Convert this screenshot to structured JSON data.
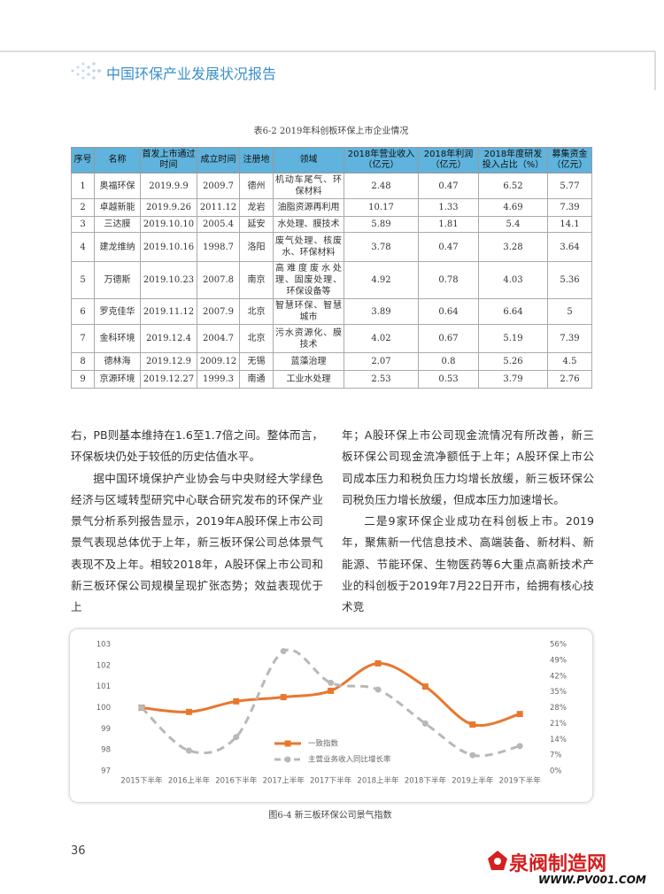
{
  "header": {
    "title": "中国环保产业发展状况报告"
  },
  "table": {
    "caption": "表6-2 2019年科创板环保上市企业情况",
    "columns": [
      "序号",
      "名称",
      "首发上市通过时间",
      "成立时间",
      "注册地",
      "领域",
      "2018年营业收入（亿元）",
      "2018年利润（亿元）",
      "2018年度研发投入占比（%）",
      "募集资金（亿元）"
    ],
    "rows": [
      [
        "1",
        "奥福环保",
        "2019.9.9",
        "2009.7",
        "德州",
        "机动车尾气、环保材料",
        "2.48",
        "0.47",
        "6.52",
        "5.77"
      ],
      [
        "2",
        "卓越新能",
        "2019.9.26",
        "2011.12",
        "龙岩",
        "油脂资源再利用",
        "10.17",
        "1.33",
        "4.69",
        "7.39"
      ],
      [
        "3",
        "三达膜",
        "2019.10.10",
        "2005.4",
        "延安",
        "水处理、膜技术",
        "5.89",
        "1.81",
        "5.4",
        "14.1"
      ],
      [
        "4",
        "建龙维纳",
        "2019.10.16",
        "1998.7",
        "洛阳",
        "废气处理、核废水、环保材料",
        "3.78",
        "0.47",
        "3.28",
        "3.64"
      ],
      [
        "5",
        "万德斯",
        "2019.10.23",
        "2007.8",
        "南京",
        "高难度废水处理、固废处理、环保设备等",
        "4.92",
        "0.78",
        "4.03",
        "5.36"
      ],
      [
        "6",
        "罗克佳华",
        "2019.11.12",
        "2007.9",
        "北京",
        "智慧环保、智慧城市",
        "3.89",
        "0.64",
        "6.64",
        "5"
      ],
      [
        "7",
        "金科环境",
        "2019.12.4",
        "2004.7",
        "北京",
        "污水资源化、膜技术",
        "4.02",
        "0.67",
        "5.19",
        "7.39"
      ],
      [
        "8",
        "德林海",
        "2019.12.9",
        "2009.12",
        "无锡",
        "蓝藻治理",
        "2.07",
        "0.8",
        "5.26",
        "4.5"
      ],
      [
        "9",
        "京源环境",
        "2019.12.27",
        "1999.3",
        "南通",
        "工业水处理",
        "2.53",
        "0.53",
        "3.79",
        "2.76"
      ]
    ]
  },
  "body": {
    "left": [
      "右，PB则基本维持在1.6至1.7倍之间。整体而言，环保板块仍处于较低的历史估值水平。",
      "据中国环境保护产业协会与中央财经大学绿色经济与区域转型研究中心联合研究发布的环保产业景气分析系列报告显示，2019年A股环保上市公司景气表现总体优于上年，新三板环保公司总体景气表现不及上年。相较2018年，A股环保上市公司和新三板环保公司规模呈现扩张态势；效益表现优于上"
    ],
    "right": [
      "年；A股环保上市公司现金流情况有所改善，新三板环保公司现金流净额低于上年；A股环保上市公司成本压力和税负压力均增长放缓，新三板环保公司税负压力增长放缓，但成本压力加速增长。",
      "二是9家环保企业成功在科创板上市。2019年，聚焦新一代信息技术、高端装备、新材料、新能源、节能环保、生物医药等6大重点高新技术产业的科创板于2019年7月22日开市，给拥有核心技术竞"
    ]
  },
  "chart_data": {
    "type": "line",
    "categories": [
      "2015下半年",
      "2016上半年",
      "2016下半年",
      "2017上半年",
      "2017下半年",
      "2018上半年",
      "2018下半年",
      "2019上半年",
      "2019下半年"
    ],
    "series": [
      {
        "name": "一致指数",
        "color": "#e8772e",
        "values": [
          100,
          99.8,
          100.3,
          100.5,
          100.8,
          102.1,
          101.0,
          99.2,
          99.7
        ]
      },
      {
        "name": "主营业务收入同比增长率",
        "color": "#b8b8b8",
        "axis": "y2",
        "values": [
          28,
          9,
          15,
          53,
          39,
          36,
          21,
          7,
          11
        ]
      }
    ],
    "ylim": [
      97,
      103
    ],
    "yticks": [
      97,
      98,
      99,
      100,
      101,
      102,
      103
    ],
    "y2lim": [
      0,
      56
    ],
    "y2ticks": [
      {
        "value": 0,
        "label": "0%"
      },
      {
        "value": 7,
        "label": "7%"
      },
      {
        "value": 14,
        "label": "14%"
      },
      {
        "value": 21,
        "label": "21%"
      },
      {
        "value": 28,
        "label": "28%"
      },
      {
        "value": 35,
        "label": "35%"
      },
      {
        "value": 42,
        "label": "42%"
      },
      {
        "value": 49,
        "label": "49%"
      },
      {
        "value": 56,
        "label": "56%"
      }
    ]
  },
  "figure": {
    "caption": "图6-4 新三板环保公司景气指数"
  },
  "footer": {
    "page": "36",
    "watermark": "泉阀制造网",
    "watermark_url": "WWW.PV001.COM"
  }
}
